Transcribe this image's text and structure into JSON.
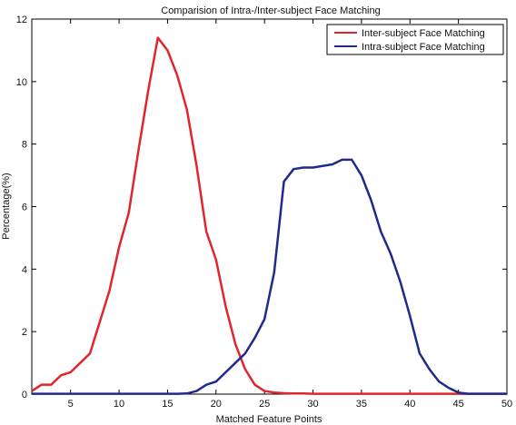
{
  "chart_data": {
    "type": "line",
    "title": "Comparision of Intra-/Inter-subject Face Matching",
    "xlabel": "Matched Feature Points",
    "ylabel": "Percentage(%)",
    "xlim": [
      1,
      50
    ],
    "ylim": [
      0,
      12
    ],
    "xticks": [
      5,
      10,
      15,
      20,
      25,
      30,
      35,
      40,
      45,
      50
    ],
    "yticks": [
      0,
      2,
      4,
      6,
      8,
      10,
      12
    ],
    "grid": false,
    "legend_position": "top-right",
    "series": [
      {
        "name": "Inter-subject Face Matching",
        "color": "#e0262c",
        "x": [
          1,
          2,
          3,
          4,
          5,
          6,
          7,
          8,
          9,
          10,
          11,
          12,
          13,
          14,
          15,
          16,
          17,
          18,
          19,
          20,
          21,
          22,
          23,
          24,
          25,
          26,
          27,
          28,
          29,
          30,
          31,
          32,
          33,
          34,
          35,
          36,
          37,
          38,
          39,
          40,
          41,
          42,
          43,
          44,
          45,
          46,
          47,
          48,
          49,
          50
        ],
        "values": [
          0.1,
          0.3,
          0.3,
          0.6,
          0.7,
          1.0,
          1.3,
          2.3,
          3.3,
          4.7,
          5.8,
          7.8,
          9.7,
          11.4,
          11.0,
          10.2,
          9.1,
          7.3,
          5.2,
          4.3,
          2.8,
          1.6,
          0.8,
          0.3,
          0.1,
          0.05,
          0.03,
          0.02,
          0.02,
          0.01,
          0.01,
          0.01,
          0.01,
          0.01,
          0.01,
          0.01,
          0.01,
          0.01,
          0.01,
          0.01,
          0.01,
          0.01,
          0.01,
          0.01,
          0.01,
          0.01,
          0.01,
          0.01,
          0.01,
          0.01
        ]
      },
      {
        "name": "Intra-subject Face Matching",
        "color": "#1f2a8c",
        "x": [
          1,
          2,
          3,
          4,
          5,
          6,
          7,
          8,
          9,
          10,
          11,
          12,
          13,
          14,
          15,
          16,
          17,
          18,
          19,
          20,
          21,
          22,
          23,
          24,
          25,
          26,
          27,
          28,
          29,
          30,
          31,
          32,
          33,
          34,
          35,
          36,
          37,
          38,
          39,
          40,
          41,
          42,
          43,
          44,
          45,
          46,
          47,
          48,
          49,
          50
        ],
        "values": [
          0.01,
          0.01,
          0.01,
          0.01,
          0.01,
          0.01,
          0.01,
          0.01,
          0.01,
          0.01,
          0.01,
          0.01,
          0.01,
          0.01,
          0.01,
          0.01,
          0.02,
          0.1,
          0.3,
          0.4,
          0.7,
          1.0,
          1.3,
          1.8,
          2.4,
          3.9,
          6.8,
          7.2,
          7.25,
          7.25,
          7.3,
          7.35,
          7.5,
          7.5,
          7.0,
          6.2,
          5.2,
          4.5,
          3.6,
          2.5,
          1.3,
          0.8,
          0.4,
          0.2,
          0.05,
          0.01,
          0.01,
          0.01,
          0.01,
          0.01
        ]
      }
    ]
  }
}
